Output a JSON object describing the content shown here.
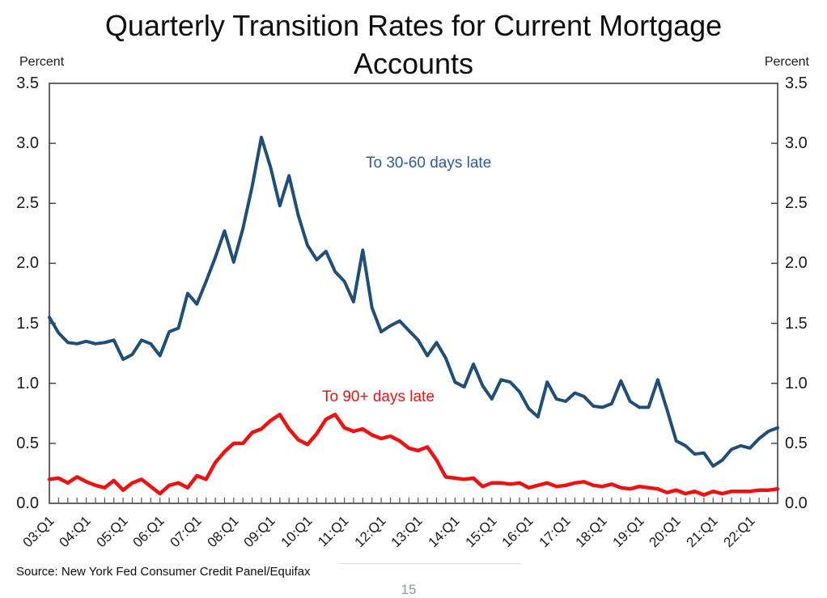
{
  "page": {
    "title_line1": "Quarterly Transition Rates for Current Mortgage",
    "title_line2": "Accounts",
    "left_axis_unit": "Percent",
    "right_axis_unit": "Percent",
    "source": "Source: New York Fed Consumer Credit Panel/Equifax",
    "page_number": "15"
  },
  "chart_data": {
    "type": "line",
    "title": "Quarterly Transition Rates for Current Mortgage Accounts",
    "ylabel": "Percent",
    "ylim": [
      0,
      3.5
    ],
    "grid": false,
    "legend_position": "inline-annotations",
    "yticks": [
      "3.5",
      "3.0",
      "2.5",
      "2.0",
      "1.5",
      "1.0",
      "0.5",
      "0.0"
    ],
    "x_major_labels": [
      "03:Q1",
      "04:Q1",
      "05:Q1",
      "06:Q1",
      "07:Q1",
      "08:Q1",
      "09:Q1",
      "10:Q1",
      "11:Q1",
      "12:Q1",
      "13:Q1",
      "14:Q1",
      "15:Q1",
      "16:Q1",
      "17:Q1",
      "18:Q1",
      "19:Q1",
      "20:Q1",
      "21:Q1",
      "22:Q1"
    ],
    "quarters_per_major": 4,
    "x_start": "2003:Q1",
    "x_end": "2022:Q4",
    "series": [
      {
        "name": "To 30-60 days late",
        "color": "#1F4E79",
        "label_color": "#2E5B9C",
        "stroke_width": 4,
        "values": [
          1.55,
          1.42,
          1.34,
          1.33,
          1.35,
          1.33,
          1.34,
          1.36,
          1.2,
          1.24,
          1.36,
          1.33,
          1.23,
          1.43,
          1.46,
          1.75,
          1.66,
          1.85,
          2.05,
          2.27,
          2.01,
          2.29,
          2.64,
          3.05,
          2.8,
          2.48,
          2.73,
          2.4,
          2.15,
          2.03,
          2.1,
          1.93,
          1.85,
          1.68,
          2.11,
          1.63,
          1.43,
          1.48,
          1.52,
          1.44,
          1.36,
          1.23,
          1.34,
          1.21,
          1.01,
          0.97,
          1.16,
          0.98,
          0.87,
          1.03,
          1.01,
          0.93,
          0.79,
          0.72,
          1.01,
          0.87,
          0.85,
          0.92,
          0.89,
          0.81,
          0.8,
          0.83,
          1.02,
          0.85,
          0.8,
          0.8,
          1.03,
          0.78,
          0.52,
          0.48,
          0.41,
          0.42,
          0.31,
          0.36,
          0.45,
          0.48,
          0.46,
          0.54,
          0.6,
          0.63
        ]
      },
      {
        "name": "To 90+ days late",
        "color": "#EE1111",
        "label_color": "#EE1111",
        "stroke_width": 4.5,
        "values": [
          0.2,
          0.21,
          0.17,
          0.22,
          0.18,
          0.15,
          0.13,
          0.19,
          0.11,
          0.17,
          0.2,
          0.14,
          0.08,
          0.15,
          0.17,
          0.13,
          0.23,
          0.2,
          0.34,
          0.43,
          0.5,
          0.5,
          0.59,
          0.62,
          0.69,
          0.74,
          0.62,
          0.53,
          0.49,
          0.58,
          0.7,
          0.74,
          0.63,
          0.6,
          0.62,
          0.57,
          0.54,
          0.56,
          0.52,
          0.46,
          0.44,
          0.47,
          0.36,
          0.22,
          0.21,
          0.2,
          0.21,
          0.14,
          0.17,
          0.17,
          0.16,
          0.17,
          0.13,
          0.15,
          0.17,
          0.14,
          0.15,
          0.17,
          0.18,
          0.15,
          0.14,
          0.16,
          0.13,
          0.12,
          0.14,
          0.13,
          0.12,
          0.09,
          0.11,
          0.08,
          0.1,
          0.07,
          0.1,
          0.08,
          0.1,
          0.1,
          0.1,
          0.11,
          0.11,
          0.12
        ]
      }
    ]
  }
}
